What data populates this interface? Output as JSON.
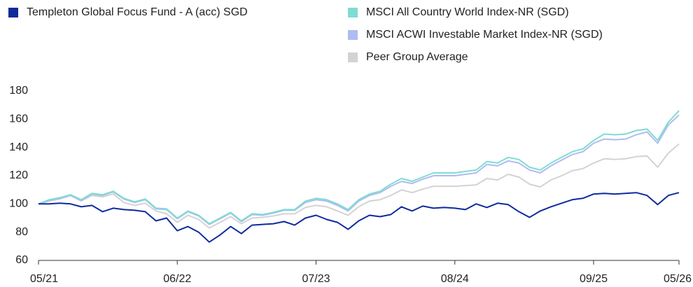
{
  "chart_data": {
    "type": "line",
    "categories": [
      "05/21",
      null,
      null,
      null,
      null,
      null,
      null,
      null,
      null,
      null,
      null,
      null,
      null,
      "06/22",
      null,
      null,
      null,
      null,
      null,
      null,
      null,
      null,
      null,
      null,
      null,
      null,
      "07/23",
      null,
      null,
      null,
      null,
      null,
      null,
      null,
      null,
      null,
      null,
      null,
      null,
      "08/24",
      null,
      null,
      null,
      null,
      null,
      null,
      null,
      null,
      null,
      null,
      null,
      null,
      "09/25",
      null,
      null,
      null,
      null,
      null,
      null,
      null,
      "05/26"
    ],
    "ylim": [
      60,
      180
    ],
    "yticks": [
      60,
      80,
      100,
      120,
      140,
      160,
      180
    ],
    "grid": false,
    "series": [
      {
        "name": "Templeton Global Focus Fund - A (acc) SGD",
        "color": "#0f2b9c",
        "values": [
          100,
          100,
          100.5,
          100,
          98,
          99,
          94.5,
          97,
          96,
          95.5,
          94.5,
          88,
          90,
          81,
          84,
          80,
          73,
          78,
          84,
          79,
          85,
          85.5,
          86,
          87.5,
          85,
          90,
          92,
          89,
          87,
          82,
          88,
          92,
          91,
          92.5,
          98,
          95,
          98.5,
          97,
          97.5,
          97,
          96,
          100,
          97.5,
          100.5,
          99.5,
          94.5,
          90.5,
          95,
          98,
          100.5,
          103,
          104,
          107,
          107.5,
          107,
          107.5,
          108,
          106,
          99.5,
          106,
          108
        ]
      },
      {
        "name": "MSCI All Country World Index-NR (SGD)",
        "color": "#7fdcd2",
        "values": [
          100,
          103,
          104.5,
          106.5,
          103,
          107.5,
          106.5,
          109,
          104,
          101.5,
          103.5,
          97,
          96.5,
          90,
          95,
          92,
          86,
          90,
          94,
          88,
          93,
          92.5,
          94,
          96,
          96,
          102,
          104,
          103,
          100,
          96,
          103,
          107,
          109,
          114,
          118,
          116,
          119,
          122,
          122,
          122,
          123,
          124,
          130,
          129,
          133,
          131.5,
          126,
          124,
          129,
          133,
          137,
          139,
          145,
          149.5,
          149,
          149.5,
          152,
          153,
          145,
          158,
          166
        ]
      },
      {
        "name": "MSCI ACWI Investable Market Index-NR (SGD)",
        "color": "#aebcf2",
        "values": [
          100,
          102.5,
          104,
          106,
          102.5,
          107,
          106,
          108.5,
          103.5,
          101,
          103,
          96.5,
          96,
          89.5,
          94.5,
          91.5,
          85.5,
          89.5,
          93.5,
          87.5,
          92.5,
          92,
          93.5,
          95.5,
          95.5,
          101,
          103,
          102,
          99,
          95,
          102,
          106,
          108,
          112.5,
          116,
          114.5,
          117.5,
          120,
          120,
          120,
          121,
          122,
          128,
          127,
          130.5,
          129,
          124,
          122,
          127,
          131,
          135,
          137,
          143,
          146,
          145.5,
          146,
          149,
          151,
          143,
          156,
          163
        ]
      },
      {
        "name": "Peer Group Average",
        "color": "#d3d3d5",
        "values": [
          100,
          102,
          103.5,
          106,
          102,
          106,
          105,
          107,
          101,
          99,
          100.5,
          95,
          93,
          87,
          92,
          89,
          83,
          87,
          91,
          86,
          90,
          90.5,
          91.5,
          93,
          93,
          97.5,
          99,
          98,
          95,
          92,
          98,
          102,
          103,
          106,
          110,
          108,
          110.5,
          112.5,
          112.5,
          112.5,
          113,
          113.5,
          118,
          117,
          121,
          119,
          114,
          112,
          117,
          120,
          123.5,
          125,
          129,
          132,
          131.5,
          132,
          133.5,
          134,
          126,
          136,
          142.5
        ]
      }
    ]
  }
}
